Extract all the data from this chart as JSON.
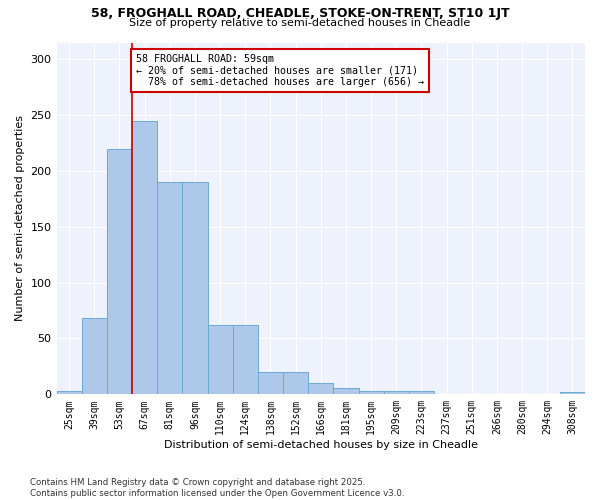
{
  "title_line1": "58, FROGHALL ROAD, CHEADLE, STOKE-ON-TRENT, ST10 1JT",
  "title_line2": "Size of property relative to semi-detached houses in Cheadle",
  "xlabel": "Distribution of semi-detached houses by size in Cheadle",
  "ylabel": "Number of semi-detached properties",
  "categories": [
    "25sqm",
    "39sqm",
    "53sqm",
    "67sqm",
    "81sqm",
    "96sqm",
    "110sqm",
    "124sqm",
    "138sqm",
    "152sqm",
    "166sqm",
    "181sqm",
    "195sqm",
    "209sqm",
    "223sqm",
    "237sqm",
    "251sqm",
    "266sqm",
    "280sqm",
    "294sqm",
    "308sqm"
  ],
  "values": [
    3,
    68,
    220,
    245,
    190,
    190,
    62,
    62,
    20,
    20,
    10,
    6,
    3,
    3,
    3,
    0,
    0,
    0,
    0,
    0,
    2
  ],
  "bar_color": "#adc8e8",
  "bar_edge_color": "#6aaad4",
  "property_label": "58 FROGHALL ROAD: 59sqm",
  "percent_smaller": 20,
  "count_smaller": 171,
  "percent_larger": 78,
  "count_larger": 656,
  "vline_x_index": 2.5,
  "annotation_box_color": "#ffffff",
  "annotation_box_edge": "#cc0000",
  "vline_color": "#cc0000",
  "background_color": "#eef2fc",
  "footer_text": "Contains HM Land Registry data © Crown copyright and database right 2025.\nContains public sector information licensed under the Open Government Licence v3.0.",
  "ylim": [
    0,
    315
  ],
  "yticks": [
    0,
    50,
    100,
    150,
    200,
    250,
    300
  ]
}
